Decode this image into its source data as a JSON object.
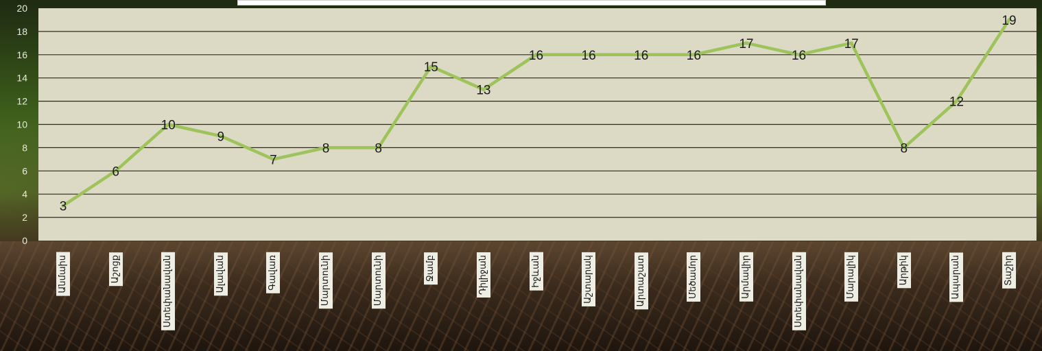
{
  "chart_data": {
    "type": "line",
    "categories": [
      "Անմաիս",
      "Աշոցք",
      "Ստեփանավան",
      "Ալավան",
      "Գավառ",
      "Մարտունի",
      "Մարտունի",
      "Ջամբ",
      "Դիլիջան",
      "Իջևան",
      "Աշտարակ",
      "Արտաշատ",
      "Մեծամոր",
      "Արմավիր",
      "Ստեփանավան",
      "Մարալիկ",
      "Արթիկ",
      "Ապարան",
      "Տաշիր"
    ],
    "values": [
      3,
      6,
      10,
      9,
      7,
      8,
      8,
      15,
      13,
      16,
      16,
      16,
      16,
      17,
      16,
      17,
      8,
      12,
      19
    ],
    "title": "",
    "xlabel": "",
    "ylabel": "",
    "ylim": [
      0,
      20
    ],
    "yticks": [
      "0",
      "2",
      "4",
      "6",
      "8",
      "10",
      "12",
      "14",
      "16",
      "18",
      "20"
    ],
    "grid": true,
    "line_color": "#9dc35a",
    "plot_background": "#dcd9c4"
  }
}
